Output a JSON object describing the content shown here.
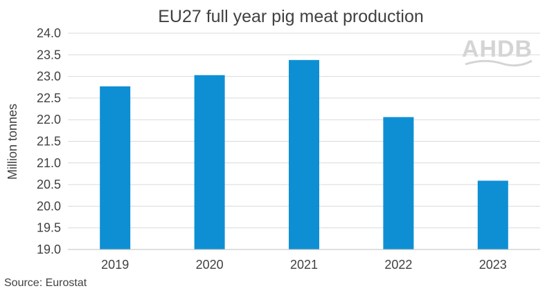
{
  "chart_data": {
    "type": "bar",
    "title": "EU27 full year pig meat production",
    "ylabel": "Million tonnes",
    "xlabel": "",
    "categories": [
      "2019",
      "2020",
      "2021",
      "2022",
      "2023"
    ],
    "values": [
      22.77,
      23.03,
      23.38,
      22.06,
      20.59
    ],
    "ylim": [
      19.0,
      24.0
    ],
    "yticks": [
      "19.0",
      "19.5",
      "20.0",
      "20.5",
      "21.0",
      "21.5",
      "22.0",
      "22.5",
      "23.0",
      "23.5",
      "24.0"
    ],
    "grid": true,
    "bar_color": "#0e8fd4",
    "grid_color": "#d9d9d9",
    "source": "Source: Eurostat",
    "logo": "AHDB"
  }
}
